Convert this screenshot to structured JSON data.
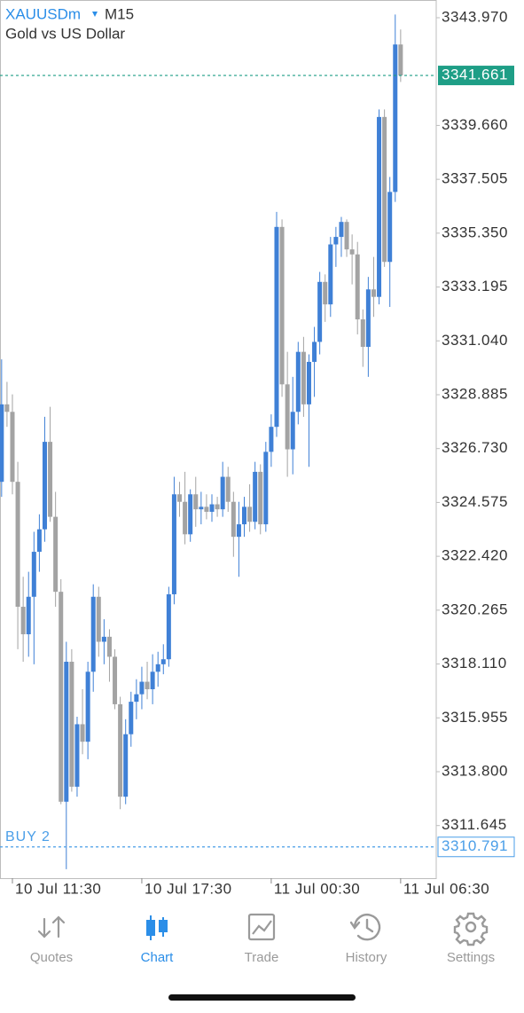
{
  "chart_data": {
    "type": "candlestick",
    "symbol": "XAUUSDm",
    "timeframe": "M15",
    "subtitle": "Gold vs US Dollar",
    "up_color": "#3f80d6",
    "down_color": "#a3a3a3",
    "x": [
      0,
      1,
      2,
      3,
      4,
      5,
      6,
      7,
      8,
      9,
      10,
      11,
      12,
      13,
      14,
      15,
      16,
      17,
      18,
      19,
      20,
      21,
      22,
      23,
      24,
      25,
      26,
      27,
      28,
      29,
      30,
      31,
      32,
      33,
      34,
      35,
      36,
      37,
      38,
      39,
      40,
      41,
      42,
      43,
      44,
      45,
      46,
      47,
      48,
      49,
      50,
      51,
      52,
      53,
      54,
      55,
      56,
      57,
      58,
      59,
      60,
      61,
      62,
      63,
      64,
      65,
      66,
      67,
      68,
      69,
      70,
      71,
      72,
      73,
      74
    ],
    "open": [
      3325.4,
      3328.5,
      3328.2,
      3325.4,
      3320.4,
      3319.3,
      3320.8,
      3322.6,
      3323.5,
      3327.0,
      3324.0,
      3321.0,
      3312.6,
      3318.2,
      3313.2,
      3315.7,
      3315.0,
      3317.8,
      3320.8,
      3319.0,
      3319.2,
      3318.4,
      3316.5,
      3312.8,
      3315.3,
      3316.6,
      3316.9,
      3317.4,
      3317.1,
      3317.8,
      3318.1,
      3318.3,
      3320.9,
      3324.9,
      3324.6,
      3323.3,
      3324.9,
      3324.3,
      3324.4,
      3324.2,
      3324.5,
      3324.3,
      3325.6,
      3324.6,
      3323.2,
      3323.7,
      3324.4,
      3323.8,
      3325.8,
      3323.7,
      3326.6,
      3327.6,
      3335.6,
      3329.3,
      3326.7,
      3328.2,
      3330.6,
      3328.5,
      3330.2,
      3331.0,
      3333.4,
      3332.5,
      3334.9,
      3335.2,
      3335.8,
      3334.7,
      3334.5,
      3331.9,
      3330.8,
      3333.1,
      3332.8,
      3340.0,
      3334.2,
      3337.0,
      3342.9
    ],
    "high": [
      3330.3,
      3329.4,
      3328.9,
      3326.2,
      3321.6,
      3321.8,
      3323.4,
      3324.1,
      3328.0,
      3328.4,
      3325.0,
      3321.5,
      3319.0,
      3318.7,
      3316.0,
      3317.1,
      3318.2,
      3321.3,
      3321.2,
      3319.9,
      3319.5,
      3318.7,
      3316.8,
      3315.9,
      3317.0,
      3317.5,
      3318.0,
      3318.2,
      3318.5,
      3318.6,
      3318.9,
      3321.2,
      3325.6,
      3325.4,
      3325.8,
      3325.1,
      3325.6,
      3325.0,
      3324.9,
      3324.9,
      3324.8,
      3326.2,
      3326.0,
      3325.0,
      3324.6,
      3324.8,
      3325.3,
      3326.2,
      3326.1,
      3327.0,
      3328.1,
      3336.2,
      3335.9,
      3330.6,
      3329.6,
      3331.0,
      3331.2,
      3330.5,
      3331.6,
      3333.8,
      3333.7,
      3335.2,
      3335.6,
      3336.0,
      3335.9,
      3335.3,
      3335.0,
      3332.3,
      3333.6,
      3334.4,
      3340.3,
      3340.3,
      3337.6,
      3344.1,
      3343.5
    ],
    "low": [
      3324.8,
      3327.6,
      3324.9,
      3318.7,
      3318.2,
      3318.4,
      3318.1,
      3321.8,
      3323.0,
      3323.8,
      3320.4,
      3312.5,
      3309.9,
      3313.0,
      3312.8,
      3314.5,
      3314.3,
      3317.0,
      3318.4,
      3318.1,
      3317.4,
      3316.3,
      3312.3,
      3312.5,
      3314.8,
      3315.9,
      3316.3,
      3316.7,
      3316.5,
      3317.2,
      3317.7,
      3318.0,
      3320.5,
      3324.0,
      3322.9,
      3323.0,
      3323.6,
      3323.7,
      3323.9,
      3323.8,
      3324.0,
      3324.0,
      3324.2,
      3322.4,
      3321.6,
      3323.2,
      3323.4,
      3323.5,
      3323.3,
      3323.4,
      3326.0,
      3327.2,
      3328.8,
      3325.6,
      3325.7,
      3327.7,
      3328.0,
      3326.0,
      3328.8,
      3330.5,
      3331.8,
      3332.0,
      3334.0,
      3334.4,
      3334.4,
      3333.3,
      3331.3,
      3330.0,
      3329.6,
      3332.0,
      3332.5,
      3334.0,
      3332.4,
      3336.6,
      3341.4
    ],
    "close": [
      3328.5,
      3328.2,
      3325.4,
      3320.4,
      3319.3,
      3320.8,
      3322.6,
      3323.5,
      3327.0,
      3324.0,
      3321.0,
      3312.6,
      3318.2,
      3313.2,
      3315.7,
      3315.0,
      3317.8,
      3320.8,
      3319.0,
      3319.2,
      3318.4,
      3316.5,
      3312.8,
      3315.3,
      3316.6,
      3316.9,
      3317.4,
      3317.1,
      3317.8,
      3318.1,
      3318.3,
      3320.9,
      3324.9,
      3324.6,
      3323.3,
      3324.9,
      3324.3,
      3324.4,
      3324.2,
      3324.5,
      3324.3,
      3325.6,
      3324.6,
      3323.2,
      3323.7,
      3324.4,
      3323.8,
      3325.8,
      3323.7,
      3326.6,
      3327.6,
      3335.6,
      3329.3,
      3326.7,
      3328.2,
      3330.6,
      3328.5,
      3330.2,
      3331.0,
      3333.4,
      3332.5,
      3334.9,
      3335.2,
      3335.8,
      3334.7,
      3334.5,
      3331.9,
      3330.8,
      3333.1,
      3332.8,
      3340.0,
      3334.2,
      3337.0,
      3342.9,
      3341.661
    ],
    "xlim": [
      -0.3,
      80.6
    ],
    "ylim": [
      3309.54,
      3344.68
    ],
    "xticks": [
      {
        "value": 2,
        "label": "10 Jul 11:30"
      },
      {
        "value": 26,
        "label": "10 Jul 17:30"
      },
      {
        "value": 50,
        "label": "11 Jul 00:30"
      },
      {
        "value": 74,
        "label": "11 Jul 06:30"
      }
    ],
    "yticks": [
      {
        "value": 3343.97,
        "label": "3343.970"
      },
      {
        "value": 3339.66,
        "label": "3339.660"
      },
      3337.505,
      {
        "value": 3335.35,
        "label": "3335.350"
      },
      3333.195,
      {
        "value": 3331.04,
        "label": "3331.040"
      },
      3328.885,
      {
        "value": 3326.73,
        "label": "3326.730"
      },
      3324.575,
      {
        "value": 3322.42,
        "label": "3322.420"
      },
      {
        "value": 3320.265,
        "label": "3320.265"
      },
      {
        "value": 3318.11,
        "label": "3318.110"
      },
      3315.955,
      {
        "value": 3313.8,
        "label": "3313.800"
      },
      3311.645
    ],
    "price_lines": [
      {
        "value": 3341.661,
        "color": "#1e9e86",
        "style": "filled"
      },
      {
        "label": "BUY 2",
        "value": 3310.791,
        "color": "#4a9ee8",
        "style": "outlined"
      }
    ]
  },
  "navigation": {
    "tabs": [
      {
        "label": "Quotes"
      },
      {
        "label": "Chart"
      },
      {
        "label": "Trade"
      },
      {
        "label": "History"
      },
      {
        "label": "Settings"
      }
    ],
    "active": 1,
    "active_color": "#2b8ee8",
    "inactive_color": "#9a9a9a"
  }
}
